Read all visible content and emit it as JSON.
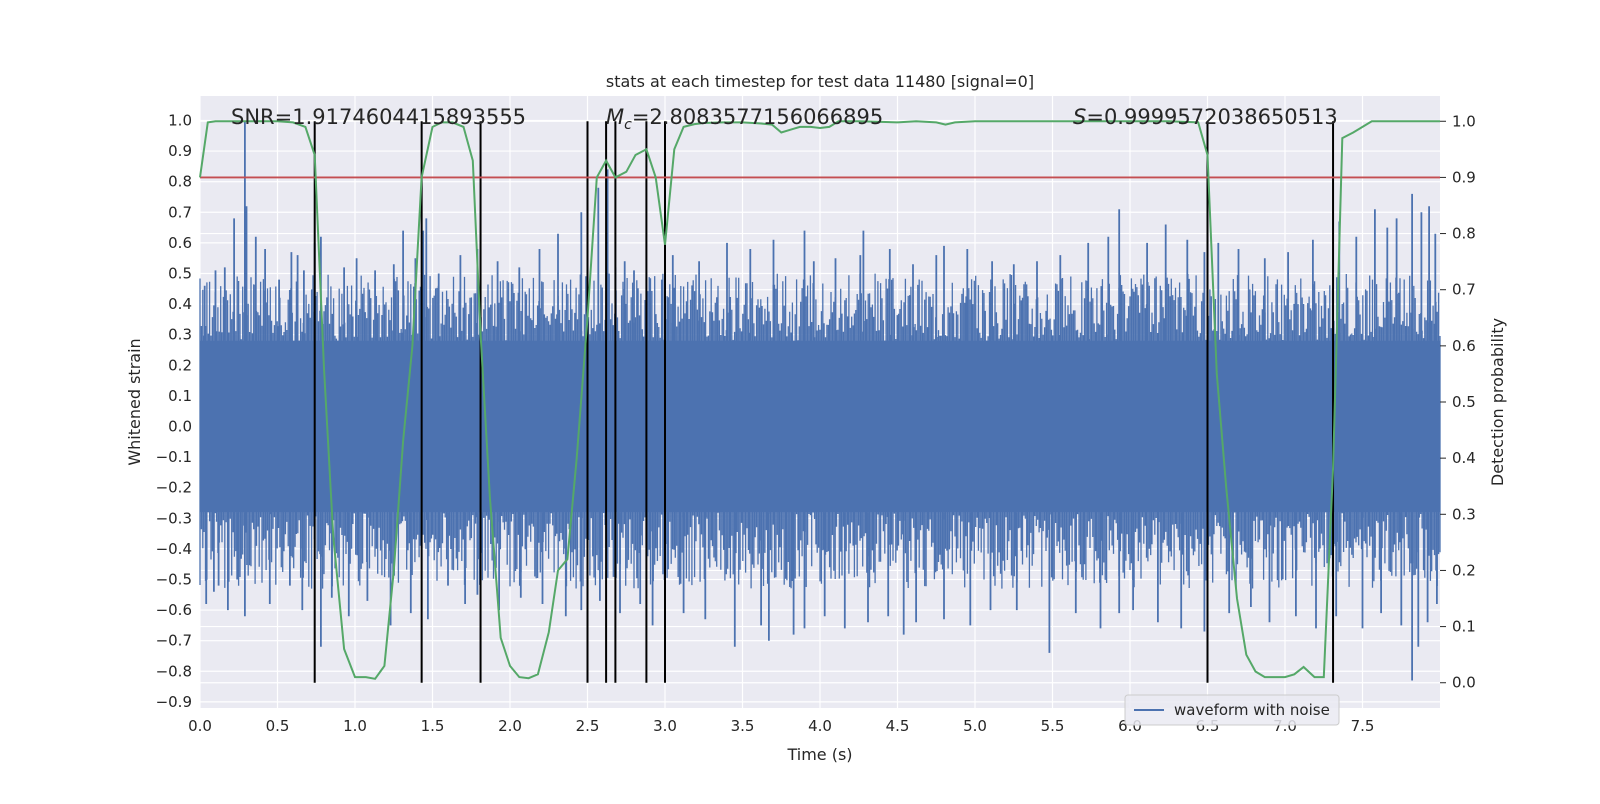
{
  "chart_data": {
    "type": "line",
    "title": "stats at each timestep for test data 11480 [signal=0]",
    "xlabel": "Time (s)",
    "ylabel": "Whitened strain",
    "ylabel_right": "Detection probability",
    "xlim": [
      0.0,
      8.0
    ],
    "ylim": [
      -0.92,
      1.08
    ],
    "ylim_right": [
      -0.045,
      1.045
    ],
    "x_ticks": [
      "0.0",
      "0.5",
      "1.0",
      "1.5",
      "2.0",
      "2.5",
      "3.0",
      "3.5",
      "4.0",
      "4.5",
      "5.0",
      "5.5",
      "6.0",
      "6.5",
      "7.0",
      "7.5"
    ],
    "y_ticks": [
      "1.0",
      "0.9",
      "0.8",
      "0.7",
      "0.6",
      "0.5",
      "0.4",
      "0.3",
      "0.2",
      "0.1",
      "0.0",
      "−0.1",
      "−0.2",
      "−0.3",
      "−0.4",
      "−0.5",
      "−0.6",
      "−0.7",
      "−0.8",
      "−0.9"
    ],
    "y_ticks_right": [
      "1.0",
      "0.9",
      "0.8",
      "0.7",
      "0.6",
      "0.5",
      "0.4",
      "0.3",
      "0.2",
      "0.1",
      "0.0"
    ],
    "annotations": {
      "snr": "SNR=1.9174604415893555",
      "mc_symbol": "M",
      "mc_sub": "c",
      "mc_value": "=2.8083577156066895",
      "s_symbol": "S",
      "s_value": "=0.9999572038650513"
    },
    "threshold": {
      "value": 0.9,
      "axis": "right",
      "color": "#c44e52"
    },
    "vertical_lines": {
      "x": [
        0.74,
        1.43,
        1.81,
        2.5,
        2.62,
        2.68,
        2.88,
        3.0,
        6.5,
        7.31
      ],
      "range": [
        0.0,
        1.0
      ],
      "color": "#000000"
    },
    "legend": {
      "position": "bottom-right",
      "entries": [
        "waveform with noise"
      ]
    },
    "series": [
      {
        "name": "waveform with noise",
        "axis": "left",
        "color": "#4c72b0",
        "style": "noise-envelope",
        "core_amplitude": 0.28,
        "typical_peak": 0.45,
        "spikes": [
          [
            0.03,
            0.46
          ],
          [
            0.1,
            0.51
          ],
          [
            0.16,
            0.52
          ],
          [
            0.22,
            0.68
          ],
          [
            0.29,
            1.0
          ],
          [
            0.3,
            0.72
          ],
          [
            0.36,
            0.62
          ],
          [
            0.42,
            0.58
          ],
          [
            0.51,
            0.48
          ],
          [
            0.59,
            0.57
          ],
          [
            0.63,
            0.56
          ],
          [
            0.67,
            0.51
          ],
          [
            0.74,
            0.6
          ],
          [
            0.78,
            0.62
          ],
          [
            0.93,
            0.52
          ],
          [
            1.01,
            0.55
          ],
          [
            1.13,
            0.51
          ],
          [
            1.25,
            0.53
          ],
          [
            1.31,
            0.64
          ],
          [
            1.39,
            0.55
          ],
          [
            1.44,
            0.64
          ],
          [
            1.46,
            0.68
          ],
          [
            1.54,
            0.5
          ],
          [
            1.68,
            0.56
          ],
          [
            1.79,
            0.58
          ],
          [
            1.92,
            0.54
          ],
          [
            2.06,
            0.52
          ],
          [
            2.19,
            0.58
          ],
          [
            2.31,
            0.63
          ],
          [
            2.46,
            0.7
          ],
          [
            2.57,
            0.78
          ],
          [
            2.63,
            0.84
          ],
          [
            2.68,
            0.52
          ],
          [
            2.74,
            0.54
          ],
          [
            2.8,
            0.51
          ],
          [
            3.05,
            0.56
          ],
          [
            3.22,
            0.54
          ],
          [
            3.4,
            0.6
          ],
          [
            3.55,
            0.58
          ],
          [
            3.7,
            0.61
          ],
          [
            3.9,
            0.64
          ],
          [
            3.96,
            0.54
          ],
          [
            4.1,
            0.55
          ],
          [
            4.26,
            0.56
          ],
          [
            4.28,
            0.64
          ],
          [
            4.45,
            0.58
          ],
          [
            4.6,
            0.53
          ],
          [
            4.75,
            0.56
          ],
          [
            4.8,
            0.59
          ],
          [
            4.95,
            0.58
          ],
          [
            5.11,
            0.54
          ],
          [
            5.25,
            0.53
          ],
          [
            5.4,
            0.54
          ],
          [
            5.55,
            0.56
          ],
          [
            5.73,
            0.6
          ],
          [
            5.86,
            0.62
          ],
          [
            5.93,
            0.71
          ],
          [
            6.11,
            0.6
          ],
          [
            6.23,
            0.66
          ],
          [
            6.37,
            0.61
          ],
          [
            6.48,
            0.57
          ],
          [
            6.57,
            0.6
          ],
          [
            6.7,
            0.58
          ],
          [
            6.87,
            0.55
          ],
          [
            7.02,
            0.57
          ],
          [
            7.18,
            0.61
          ],
          [
            7.35,
            0.67
          ],
          [
            7.46,
            0.62
          ],
          [
            7.58,
            0.71
          ],
          [
            7.66,
            0.65
          ],
          [
            7.72,
            0.68
          ],
          [
            7.82,
            0.76
          ],
          [
            7.88,
            0.7
          ],
          [
            7.93,
            0.72
          ],
          [
            7.97,
            0.63
          ]
        ],
        "dips": [
          [
            0.04,
            -0.58
          ],
          [
            0.09,
            -0.54
          ],
          [
            0.12,
            -0.52
          ],
          [
            0.18,
            -0.6
          ],
          [
            0.24,
            -0.5
          ],
          [
            0.29,
            -0.62
          ],
          [
            0.45,
            -0.58
          ],
          [
            0.58,
            -0.52
          ],
          [
            0.66,
            -0.6
          ],
          [
            0.78,
            -0.72
          ],
          [
            0.85,
            -0.56
          ],
          [
            0.96,
            -0.62
          ],
          [
            1.08,
            -0.57
          ],
          [
            1.23,
            -0.65
          ],
          [
            1.36,
            -0.61
          ],
          [
            1.47,
            -0.63
          ],
          [
            1.6,
            -0.52
          ],
          [
            1.71,
            -0.58
          ],
          [
            1.79,
            -0.55
          ],
          [
            1.93,
            -0.6
          ],
          [
            2.07,
            -0.56
          ],
          [
            2.21,
            -0.58
          ],
          [
            2.36,
            -0.62
          ],
          [
            2.46,
            -0.6
          ],
          [
            2.58,
            -0.57
          ],
          [
            2.71,
            -0.61
          ],
          [
            2.84,
            -0.58
          ],
          [
            2.92,
            -0.65
          ],
          [
            3.12,
            -0.61
          ],
          [
            3.26,
            -0.63
          ],
          [
            3.45,
            -0.72
          ],
          [
            3.62,
            -0.65
          ],
          [
            3.67,
            -0.7
          ],
          [
            3.83,
            -0.68
          ],
          [
            3.9,
            -0.66
          ],
          [
            4.03,
            -0.62
          ],
          [
            4.16,
            -0.66
          ],
          [
            4.31,
            -0.64
          ],
          [
            4.44,
            -0.62
          ],
          [
            4.54,
            -0.68
          ],
          [
            4.62,
            -0.64
          ],
          [
            4.8,
            -0.63
          ],
          [
            4.97,
            -0.65
          ],
          [
            5.1,
            -0.6
          ],
          [
            5.27,
            -0.6
          ],
          [
            5.48,
            -0.74
          ],
          [
            5.65,
            -0.61
          ],
          [
            5.81,
            -0.66
          ],
          [
            5.93,
            -0.61
          ],
          [
            6.02,
            -0.6
          ],
          [
            6.18,
            -0.64
          ],
          [
            6.33,
            -0.66
          ],
          [
            6.48,
            -0.67
          ],
          [
            6.64,
            -0.61
          ],
          [
            6.78,
            -0.59
          ],
          [
            6.9,
            -0.64
          ],
          [
            7.07,
            -0.62
          ],
          [
            7.2,
            -0.66
          ],
          [
            7.33,
            -0.62
          ],
          [
            7.5,
            -0.66
          ],
          [
            7.62,
            -0.61
          ],
          [
            7.75,
            -0.65
          ],
          [
            7.82,
            -0.83
          ],
          [
            7.86,
            -0.72
          ],
          [
            7.92,
            -0.64
          ],
          [
            7.98,
            -0.58
          ]
        ]
      },
      {
        "name": "",
        "axis": "right",
        "color": "#55a868",
        "x": [
          0.0,
          0.05,
          0.1,
          0.2,
          0.3,
          0.4,
          0.5,
          0.6,
          0.68,
          0.74,
          0.8,
          0.86,
          0.93,
          1.0,
          1.07,
          1.13,
          1.19,
          1.25,
          1.31,
          1.37,
          1.43,
          1.5,
          1.56,
          1.63,
          1.7,
          1.76,
          1.81,
          1.87,
          1.94,
          2.0,
          2.06,
          2.12,
          2.18,
          2.25,
          2.31,
          2.37,
          2.43,
          2.5,
          2.56,
          2.62,
          2.68,
          2.75,
          2.81,
          2.88,
          2.94,
          3.0,
          3.06,
          3.12,
          3.19,
          3.25,
          3.37,
          3.5,
          3.62,
          3.69,
          3.75,
          3.81,
          3.87,
          3.94,
          4.0,
          4.06,
          4.12,
          4.19,
          4.25,
          4.5,
          4.62,
          4.75,
          4.81,
          4.87,
          5.0,
          5.5,
          6.0,
          6.25,
          6.44,
          6.5,
          6.56,
          6.62,
          6.69,
          6.75,
          6.81,
          6.87,
          6.94,
          7.0,
          7.06,
          7.12,
          7.19,
          7.25,
          7.31,
          7.37,
          7.44,
          7.5,
          7.56,
          7.62,
          7.75,
          8.0
        ],
        "y": [
          0.9,
          0.998,
          1.0,
          1.0,
          1.0,
          1.0,
          1.0,
          0.998,
          0.99,
          0.94,
          0.56,
          0.26,
          0.06,
          0.01,
          0.01,
          0.007,
          0.03,
          0.2,
          0.43,
          0.6,
          0.9,
          0.99,
          0.998,
          0.998,
          0.99,
          0.93,
          0.62,
          0.33,
          0.08,
          0.03,
          0.01,
          0.008,
          0.015,
          0.09,
          0.2,
          0.22,
          0.4,
          0.65,
          0.9,
          0.93,
          0.9,
          0.91,
          0.94,
          0.95,
          0.9,
          0.78,
          0.95,
          0.99,
          0.995,
          0.997,
          0.998,
          0.998,
          0.996,
          0.994,
          0.98,
          0.985,
          0.99,
          0.99,
          0.988,
          0.99,
          1.0,
          1.0,
          1.0,
          0.998,
          1.0,
          0.998,
          0.994,
          0.998,
          1.0,
          1.0,
          1.0,
          1.0,
          0.998,
          0.94,
          0.55,
          0.35,
          0.15,
          0.05,
          0.02,
          0.01,
          0.01,
          0.01,
          0.015,
          0.028,
          0.01,
          0.01,
          0.38,
          0.97,
          0.98,
          0.99,
          1.0,
          1.0,
          1.0,
          1.0
        ]
      }
    ]
  }
}
